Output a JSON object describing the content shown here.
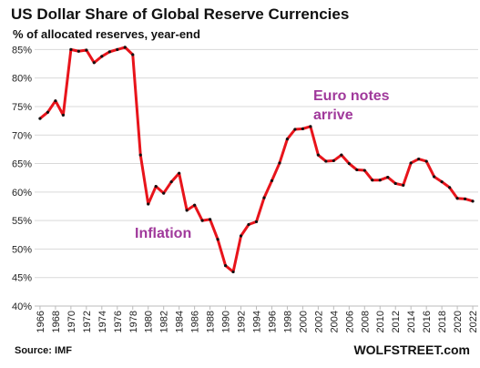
{
  "chart_data": {
    "type": "line",
    "title": "US Dollar Share of Global Reserve Currencies",
    "subtitle": "% of allocated reserves, year-end",
    "source": "Source: IMF",
    "brand": "WOLFSTREET.com",
    "annotations": [
      {
        "lines": [
          "Euro notes",
          "arrive"
        ],
        "color": "#a0399b"
      },
      {
        "lines": [
          "Inflation"
        ],
        "color": "#a0399b"
      }
    ],
    "x": [
      1966,
      1967,
      1968,
      1969,
      1970,
      1971,
      1972,
      1973,
      1974,
      1975,
      1976,
      1977,
      1978,
      1979,
      1980,
      1981,
      1982,
      1983,
      1984,
      1985,
      1986,
      1987,
      1988,
      1989,
      1990,
      1991,
      1992,
      1993,
      1994,
      1995,
      1996,
      1997,
      1998,
      1999,
      2000,
      2001,
      2002,
      2003,
      2004,
      2005,
      2006,
      2007,
      2008,
      2009,
      2010,
      2011,
      2012,
      2013,
      2014,
      2015,
      2016,
      2017,
      2018,
      2019,
      2020,
      2021,
      2022
    ],
    "series": [
      {
        "color": "#e8141b",
        "marker_color": "#111111",
        "values": [
          72.9,
          74,
          76,
          73.5,
          85,
          84.7,
          84.9,
          82.7,
          83.8,
          84.6,
          85,
          85.4,
          84.1,
          66.5,
          57.9,
          61,
          59.8,
          61.8,
          63.3,
          56.8,
          57.7,
          55,
          55.2,
          51.7,
          47.1,
          46,
          52.3,
          54.3,
          54.8,
          59,
          62,
          65.1,
          69.3,
          71,
          71.1,
          71.5,
          66.5,
          65.4,
          65.5,
          66.5,
          65,
          63.9,
          63.8,
          62.1,
          62.1,
          62.6,
          61.5,
          61.2,
          65.1,
          65.8,
          65.4,
          62.7,
          61.8,
          60.8,
          58.9,
          58.8,
          58.4
        ]
      }
    ],
    "xlim": [
      1965.3,
      2022.7
    ],
    "xticks": [
      1966,
      1968,
      1970,
      1972,
      1974,
      1976,
      1978,
      1980,
      1982,
      1984,
      1986,
      1988,
      1990,
      1992,
      1994,
      1996,
      1998,
      2000,
      2002,
      2004,
      2006,
      2008,
      2010,
      2012,
      2014,
      2016,
      2018,
      2020,
      2022
    ],
    "ylim": [
      40,
      86.5
    ],
    "yticks": [
      {
        "value": 40,
        "label": "40%"
      },
      {
        "value": 45,
        "label": "45%"
      },
      {
        "value": 50,
        "label": "50%"
      },
      {
        "value": 55,
        "label": "55%"
      },
      {
        "value": 60,
        "label": "60%"
      },
      {
        "value": 65,
        "label": "65%"
      },
      {
        "value": 70,
        "label": "70%"
      },
      {
        "value": 75,
        "label": "75%"
      },
      {
        "value": 80,
        "label": "80%"
      },
      {
        "value": 85,
        "label": "85%"
      }
    ],
    "grid": true
  }
}
